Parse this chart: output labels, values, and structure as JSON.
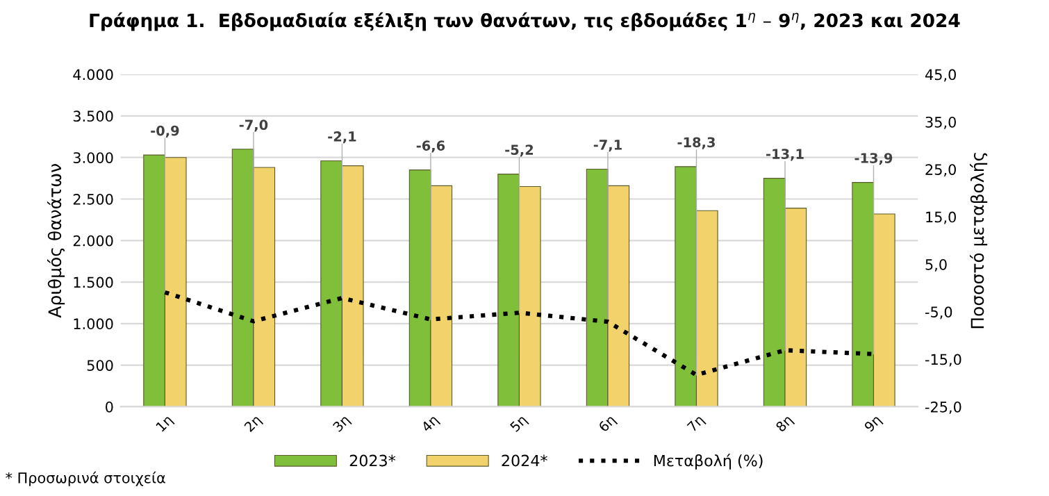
{
  "chart_data": {
    "type": "bar",
    "title": "Γράφημα 1.  Εβδομαδιαία εξέλιξη των θανάτων, τις εβδομάδες 1$^{η}$ – 9$^{η}$, 2023 και 2024",
    "ylabel": "Αριθμός θανάτων",
    "y2label": "Ποσοστό μεταβολής",
    "categories": [
      "1η",
      "2η",
      "3η",
      "4η",
      "5η",
      "6η",
      "7η",
      "8η",
      "9η"
    ],
    "series": [
      {
        "name": "2023*",
        "color": "#7fbf3a",
        "values": [
          3030,
          3100,
          2960,
          2850,
          2800,
          2860,
          2890,
          2750,
          2700
        ]
      },
      {
        "name": "2024*",
        "color": "#f2d36b",
        "values": [
          3000,
          2880,
          2900,
          2660,
          2650,
          2660,
          2360,
          2390,
          2320
        ]
      },
      {
        "name": "Μεταβολή (%)",
        "type": "line",
        "axis": "y2",
        "color": "#000000",
        "line_style": "dotted",
        "values": [
          -0.9,
          -7.0,
          -2.1,
          -6.6,
          -5.2,
          -7.1,
          -18.3,
          -13.1,
          -13.9
        ],
        "value_labels": [
          "-0,9",
          "-7,0",
          "-2,1",
          "-6,6",
          "-5,2",
          "-7,1",
          "-18,3",
          "-13,1",
          "-13,9"
        ]
      }
    ],
    "ylim": [
      0,
      4000
    ],
    "yticks": [
      0,
      500,
      {
        "value": 1000,
        "label": "1.000"
      },
      {
        "value": 1500,
        "label": "1.500"
      },
      {
        "value": 2000,
        "label": "2.000"
      },
      {
        "value": 2500,
        "label": "2.500"
      },
      {
        "value": 3000,
        "label": "3.000"
      },
      {
        "value": 3500,
        "label": "3.500"
      },
      {
        "value": 4000,
        "label": "4.000"
      }
    ],
    "y2lim": [
      -25,
      45
    ],
    "y2ticks": [
      {
        "value": -25,
        "label": "-25,0"
      },
      {
        "value": -15,
        "label": "-15,0"
      },
      {
        "value": -5,
        "label": "-5,0"
      },
      {
        "value": 5,
        "label": "5,0"
      },
      {
        "value": 15,
        "label": "15,0"
      },
      {
        "value": 25,
        "label": "25,0"
      },
      {
        "value": 35,
        "label": "35,0"
      },
      {
        "value": 45,
        "label": "45,0"
      }
    ],
    "grid": "y",
    "legend": "bottom",
    "annotations": [
      "* Προσωρινά στοιχεία"
    ]
  }
}
